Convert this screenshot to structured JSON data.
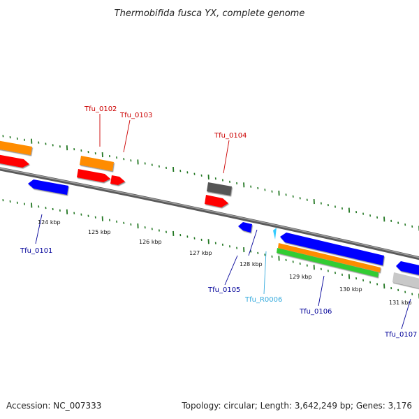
{
  "title": "Thermobifida fusca YX, complete genome",
  "footer": {
    "accession": "Accession: NC_007333",
    "topology": "Topology: circular; Length: 3,642,249 bp; Genes: 3,176"
  },
  "kbp_labels": [
    "124 kbp",
    "125 kbp",
    "126 kbp",
    "127 kbp",
    "128 kbp",
    "129 kbp",
    "130 kbp",
    "131 kbp"
  ],
  "gene_labels": {
    "tfu_0101": "Tfu_0101",
    "tfu_0102": "Tfu_0102",
    "tfu_0103": "Tfu_0103",
    "tfu_0104": "Tfu_0104",
    "tfu_0105": "Tfu_0105",
    "tfu_r0006": "Tfu_R0006",
    "tfu_0106": "Tfu_0106",
    "tfu_0107": "Tfu_0107"
  },
  "colors": {
    "orange": "#ff8c00",
    "red": "#ff0000",
    "blue": "#0000ff",
    "dark_gray": "#555555",
    "light_gray": "#c8c8c8",
    "green": "#33cc33",
    "cyan": "#33ccff",
    "backbone": "#808080",
    "tick": "#227722",
    "label_red": "#cc0000",
    "label_blue": "#000099",
    "label_cyan": "#33aadd"
  }
}
